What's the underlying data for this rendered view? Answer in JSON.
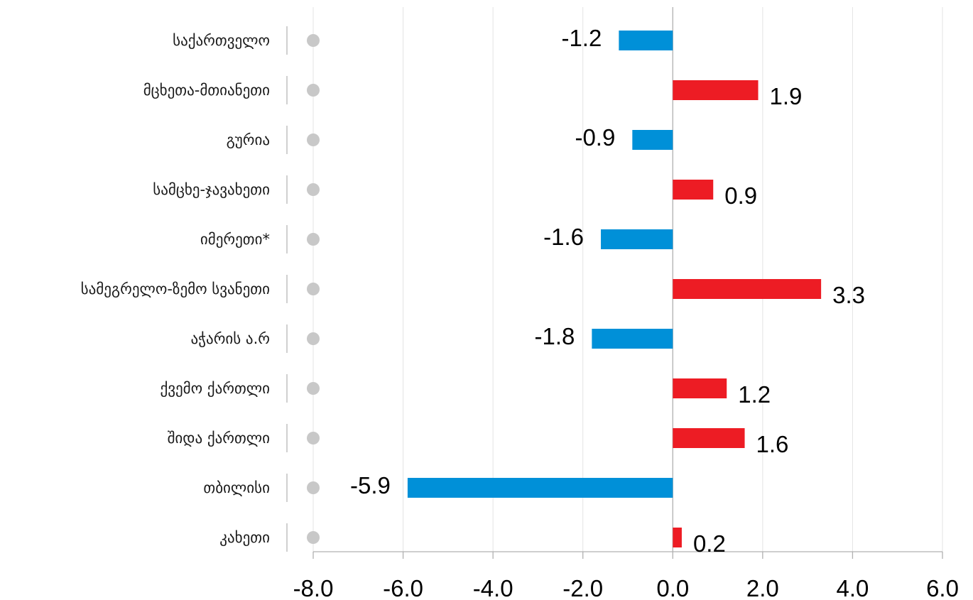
{
  "chart_data": {
    "type": "bar",
    "orientation": "horizontal",
    "categories": [
      "საქართველო",
      "მცხეთა-მთიანეთი",
      "გურია",
      "სამცხე-ჯავახეთი",
      "იმერეთი*",
      "სამეგრელო-ზემო სვანეთი",
      "აჭარის ა.რ",
      "ქვემო ქართლი",
      "შიდა ქართლი",
      "თბილისი",
      "კახეთი"
    ],
    "values": [
      -1.2,
      1.9,
      -0.9,
      0.9,
      -1.6,
      3.3,
      -1.8,
      1.2,
      1.6,
      -5.9,
      0.2
    ],
    "value_labels": [
      "-1.2",
      "1.9",
      "-0.9",
      "0.9",
      "-1.6",
      "3.3",
      "-1.8",
      "1.2",
      "1.6",
      "-5.9",
      "0.2"
    ],
    "xlim": [
      -8.0,
      6.0
    ],
    "xticks": [
      -8.0,
      -6.0,
      -4.0,
      -2.0,
      0.0,
      2.0,
      4.0,
      6.0
    ],
    "xtick_labels": [
      "-8.0",
      "-6.0",
      "-4.0",
      "-2.0",
      "0.0",
      "2.0",
      "4.0",
      "6.0"
    ],
    "grid": "vertical",
    "title": "",
    "xlabel": "",
    "ylabel": "",
    "colors": {
      "positive": "#ed1c24",
      "negative": "#0090d8",
      "marker": "#c8c8c8",
      "grid": "#e3e3e3",
      "axis": "#b0b0b0"
    }
  }
}
